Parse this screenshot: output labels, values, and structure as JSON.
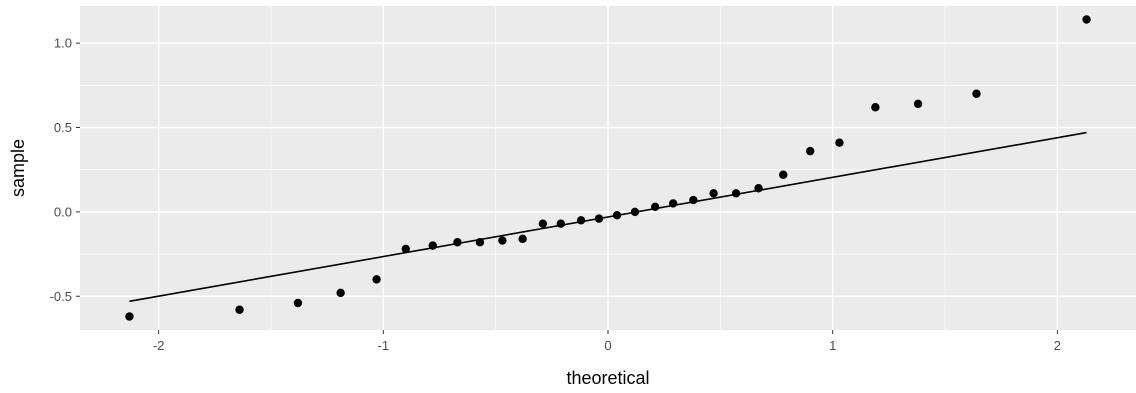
{
  "chart_data": {
    "type": "scatter",
    "xlabel": "theoretical",
    "ylabel": "sample",
    "xlim": [
      -2.35,
      2.35
    ],
    "ylim": [
      -0.7,
      1.22
    ],
    "x_ticks": [
      -2,
      -1,
      0,
      1,
      2
    ],
    "x_tick_labels": [
      "-2",
      "-1",
      "0",
      "1",
      "2"
    ],
    "y_ticks": [
      -0.5,
      0.0,
      0.5,
      1.0
    ],
    "y_tick_labels": [
      "-0.5",
      "0.0",
      "0.5",
      "1.0"
    ],
    "grid": true,
    "colors": {
      "panel": "#ebebeb",
      "grid": "#ffffff",
      "points": "#000000",
      "line": "#000000"
    },
    "points": [
      {
        "x": -2.13,
        "y": -0.62
      },
      {
        "x": -1.64,
        "y": -0.58
      },
      {
        "x": -1.38,
        "y": -0.54
      },
      {
        "x": -1.19,
        "y": -0.48
      },
      {
        "x": -1.03,
        "y": -0.4
      },
      {
        "x": -0.9,
        "y": -0.22
      },
      {
        "x": -0.78,
        "y": -0.2
      },
      {
        "x": -0.67,
        "y": -0.18
      },
      {
        "x": -0.57,
        "y": -0.18
      },
      {
        "x": -0.47,
        "y": -0.17
      },
      {
        "x": -0.38,
        "y": -0.16
      },
      {
        "x": -0.29,
        "y": -0.07
      },
      {
        "x": -0.21,
        "y": -0.07
      },
      {
        "x": -0.12,
        "y": -0.05
      },
      {
        "x": -0.04,
        "y": -0.04
      },
      {
        "x": 0.04,
        "y": -0.02
      },
      {
        "x": 0.12,
        "y": 0.0
      },
      {
        "x": 0.21,
        "y": 0.03
      },
      {
        "x": 0.29,
        "y": 0.05
      },
      {
        "x": 0.38,
        "y": 0.07
      },
      {
        "x": 0.47,
        "y": 0.11
      },
      {
        "x": 0.57,
        "y": 0.11
      },
      {
        "x": 0.67,
        "y": 0.14
      },
      {
        "x": 0.78,
        "y": 0.22
      },
      {
        "x": 0.9,
        "y": 0.36
      },
      {
        "x": 1.03,
        "y": 0.41
      },
      {
        "x": 1.19,
        "y": 0.62
      },
      {
        "x": 1.38,
        "y": 0.64
      },
      {
        "x": 1.64,
        "y": 0.7
      },
      {
        "x": 2.13,
        "y": 1.14
      }
    ],
    "reference_line": {
      "x": [
        -2.13,
        2.13
      ],
      "y": [
        -0.53,
        0.47
      ]
    }
  }
}
